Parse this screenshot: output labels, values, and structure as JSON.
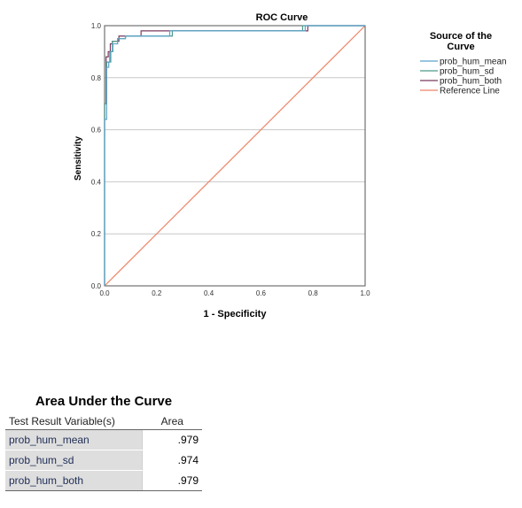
{
  "chart_data": {
    "type": "line",
    "title": "ROC Curve",
    "xlabel": "1 - Specificity",
    "ylabel": "Sensitivity",
    "xlim": [
      0,
      1
    ],
    "ylim": [
      0,
      1
    ],
    "x_ticks": [
      "0.0",
      "0.2",
      "0.4",
      "0.6",
      "0.8",
      "1.0"
    ],
    "y_ticks": [
      "0.0",
      "0.2",
      "0.4",
      "0.6",
      "0.8",
      "1.0"
    ],
    "grid": "horizontal",
    "legend_title": "Source of the Curve",
    "legend_position": "right",
    "series": [
      {
        "name": "prob_hum_mean",
        "color": "#5aa5c9",
        "points": [
          [
            0,
            0
          ],
          [
            0,
            0.64
          ],
          [
            0.008,
            0.64
          ],
          [
            0.008,
            0.84
          ],
          [
            0.016,
            0.84
          ],
          [
            0.016,
            0.86
          ],
          [
            0.024,
            0.86
          ],
          [
            0.024,
            0.9
          ],
          [
            0.032,
            0.9
          ],
          [
            0.032,
            0.93
          ],
          [
            0.05,
            0.93
          ],
          [
            0.05,
            0.95
          ],
          [
            0.08,
            0.95
          ],
          [
            0.08,
            0.96
          ],
          [
            0.25,
            0.96
          ],
          [
            0.25,
            0.98
          ],
          [
            0.77,
            0.98
          ],
          [
            0.77,
            1.0
          ],
          [
            1.0,
            1.0
          ]
        ]
      },
      {
        "name": "prob_hum_sd",
        "color": "#4e9a8a",
        "points": [
          [
            0,
            0
          ],
          [
            0,
            0.7
          ],
          [
            0.008,
            0.7
          ],
          [
            0.008,
            0.86
          ],
          [
            0.02,
            0.86
          ],
          [
            0.02,
            0.9
          ],
          [
            0.03,
            0.9
          ],
          [
            0.03,
            0.94
          ],
          [
            0.05,
            0.94
          ],
          [
            0.05,
            0.95
          ],
          [
            0.08,
            0.95
          ],
          [
            0.08,
            0.96
          ],
          [
            0.26,
            0.96
          ],
          [
            0.26,
            0.98
          ],
          [
            0.76,
            0.98
          ],
          [
            0.76,
            1.0
          ],
          [
            1.0,
            1.0
          ]
        ]
      },
      {
        "name": "prob_hum_both",
        "color": "#7a3a5f",
        "points": [
          [
            0,
            0
          ],
          [
            0,
            0.7
          ],
          [
            0.006,
            0.7
          ],
          [
            0.006,
            0.88
          ],
          [
            0.014,
            0.88
          ],
          [
            0.014,
            0.9
          ],
          [
            0.022,
            0.9
          ],
          [
            0.022,
            0.93
          ],
          [
            0.03,
            0.93
          ],
          [
            0.03,
            0.94
          ],
          [
            0.055,
            0.94
          ],
          [
            0.055,
            0.96
          ],
          [
            0.14,
            0.96
          ],
          [
            0.14,
            0.98
          ],
          [
            0.78,
            0.98
          ],
          [
            0.78,
            1.0
          ],
          [
            1.0,
            1.0
          ]
        ]
      },
      {
        "name": "Reference Line",
        "color": "#ee8466",
        "points": [
          [
            0,
            0
          ],
          [
            1,
            1
          ]
        ]
      }
    ]
  },
  "auc_table": {
    "title": "Area Under the Curve",
    "columns": [
      "Test Result Variable(s)",
      "Area"
    ],
    "rows": [
      {
        "variable": "prob_hum_mean",
        "area": ".979"
      },
      {
        "variable": "prob_hum_sd",
        "area": ".974"
      },
      {
        "variable": "prob_hum_both",
        "area": ".979"
      }
    ]
  }
}
